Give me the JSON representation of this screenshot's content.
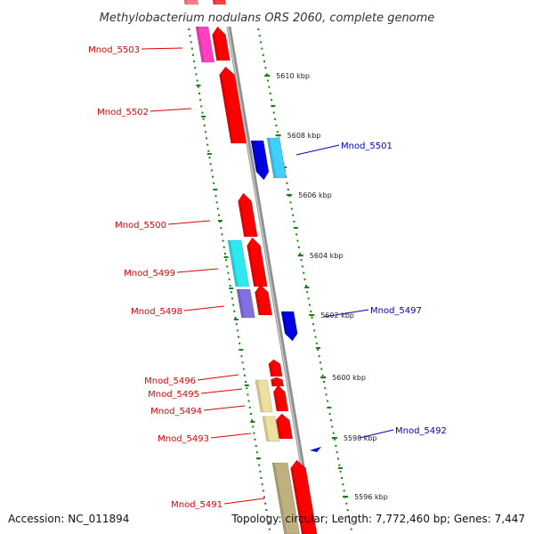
{
  "title": "Methylobacterium nodulans ORS 2060, complete genome",
  "footer": {
    "accession": "Accession: NC_011894",
    "topology": "Topology: circular; Length: 7,772,460 bp; Genes: 7,447"
  },
  "colors": {
    "forward_cds": "#ff0000",
    "reverse_cds": "#0000ff",
    "backbone": "#a0a0a0",
    "tick": "#1a7f1a",
    "label_forward": "#e00000",
    "label_reverse": "#0000c8"
  },
  "scale_ticks_kbp": [
    "5610 kbp",
    "5608 kbp",
    "5606 kbp",
    "5604 kbp",
    "5602 kbp",
    "5600 kbp",
    "5598 kbp",
    "5596 kbp"
  ],
  "gene_labels_forward": [
    "Mnod_5503",
    "Mnod_5502",
    "Mnod_5500",
    "Mnod_5499",
    "Mnod_5498",
    "Mnod_5496",
    "Mnod_5495",
    "Mnod_5494",
    "Mnod_5493",
    "Mnod_5491"
  ],
  "gene_labels_reverse": [
    "Mnod_5501",
    "Mnod_5497",
    "Mnod_5492"
  ]
}
